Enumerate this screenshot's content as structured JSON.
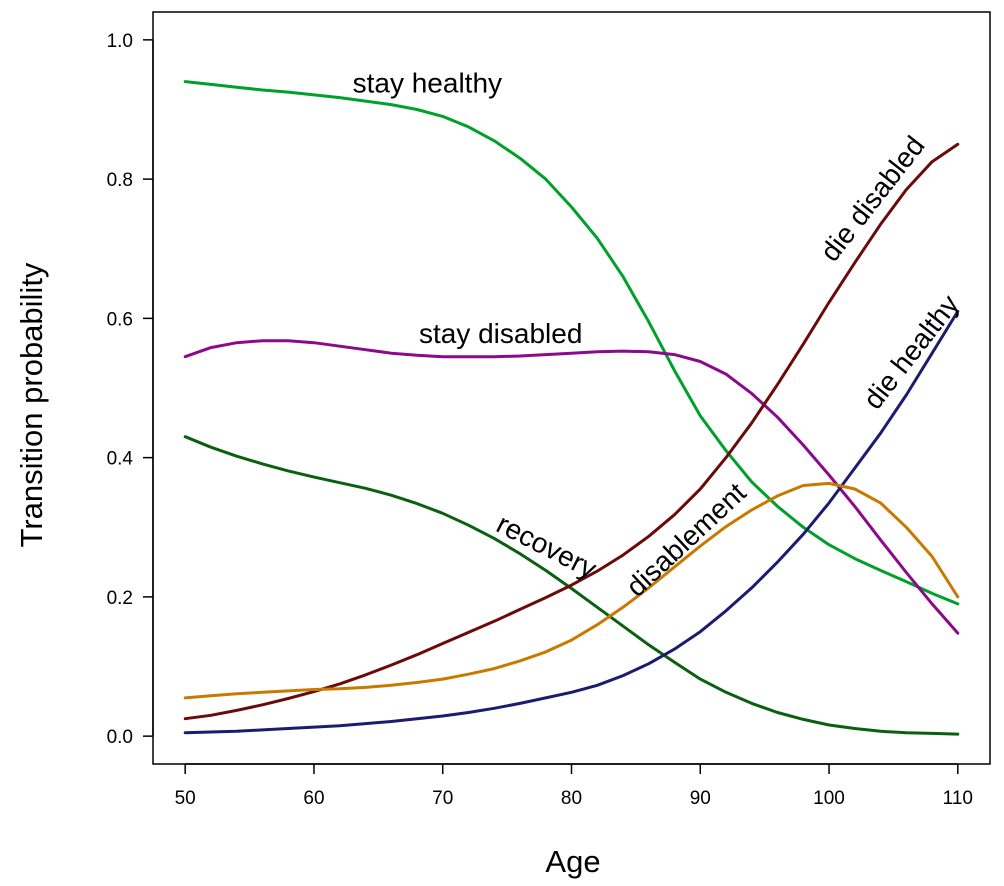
{
  "chart_data": {
    "type": "line",
    "title": "",
    "xlabel": "Age",
    "ylabel": "Transition probability",
    "xlim": [
      47.5,
      112.5
    ],
    "ylim": [
      -0.04,
      1.04
    ],
    "xticks": [
      50,
      60,
      70,
      80,
      90,
      100,
      110
    ],
    "xtick_labels": [
      "50",
      "60",
      "70",
      "80",
      "90",
      "100",
      "110"
    ],
    "yticks": [
      0.0,
      0.2,
      0.4,
      0.6,
      0.8,
      1.0
    ],
    "ytick_labels": [
      "0.0",
      "0.2",
      "0.4",
      "0.6",
      "0.8",
      "1.0"
    ],
    "grid": false,
    "legend": "none (labels placed on curves)",
    "x": [
      50,
      52,
      54,
      56,
      58,
      60,
      62,
      64,
      66,
      68,
      70,
      72,
      74,
      76,
      78,
      80,
      82,
      84,
      86,
      88,
      90,
      92,
      94,
      96,
      98,
      100,
      102,
      104,
      106,
      108,
      110
    ],
    "series": [
      {
        "name": "stay healthy",
        "color": "#00a02a",
        "values": [
          0.94,
          0.936,
          0.932,
          0.928,
          0.925,
          0.921,
          0.917,
          0.912,
          0.907,
          0.9,
          0.89,
          0.875,
          0.855,
          0.83,
          0.8,
          0.76,
          0.715,
          0.66,
          0.595,
          0.525,
          0.46,
          0.41,
          0.365,
          0.33,
          0.3,
          0.275,
          0.255,
          0.238,
          0.222,
          0.205,
          0.19
        ]
      },
      {
        "name": "stay disabled",
        "color": "#8b0a8b",
        "values": [
          0.545,
          0.558,
          0.565,
          0.568,
          0.568,
          0.565,
          0.56,
          0.555,
          0.55,
          0.547,
          0.545,
          0.545,
          0.545,
          0.546,
          0.548,
          0.55,
          0.552,
          0.553,
          0.552,
          0.548,
          0.538,
          0.52,
          0.492,
          0.458,
          0.418,
          0.375,
          0.33,
          0.282,
          0.235,
          0.19,
          0.148
        ]
      },
      {
        "name": "recovery",
        "color": "#0a6010",
        "values": [
          0.43,
          0.415,
          0.402,
          0.391,
          0.381,
          0.372,
          0.364,
          0.356,
          0.346,
          0.334,
          0.32,
          0.303,
          0.284,
          0.262,
          0.238,
          0.212,
          0.185,
          0.158,
          0.131,
          0.106,
          0.082,
          0.063,
          0.047,
          0.034,
          0.024,
          0.016,
          0.011,
          0.007,
          0.005,
          0.004,
          0.003
        ]
      },
      {
        "name": "die disabled",
        "color": "#6a0a0a",
        "values": [
          0.025,
          0.03,
          0.037,
          0.045,
          0.054,
          0.064,
          0.075,
          0.088,
          0.102,
          0.117,
          0.133,
          0.149,
          0.165,
          0.182,
          0.199,
          0.217,
          0.237,
          0.26,
          0.287,
          0.318,
          0.355,
          0.4,
          0.45,
          0.505,
          0.563,
          0.623,
          0.68,
          0.735,
          0.785,
          0.825,
          0.85
        ]
      },
      {
        "name": "die healthy",
        "color": "#1c1c6e",
        "values": [
          0.005,
          0.006,
          0.007,
          0.009,
          0.011,
          0.013,
          0.015,
          0.018,
          0.021,
          0.025,
          0.029,
          0.034,
          0.04,
          0.047,
          0.055,
          0.063,
          0.073,
          0.087,
          0.104,
          0.125,
          0.15,
          0.18,
          0.213,
          0.25,
          0.29,
          0.335,
          0.385,
          0.435,
          0.49,
          0.55,
          0.61
        ]
      },
      {
        "name": "disablement",
        "color": "#c87a00",
        "values": [
          0.055,
          0.058,
          0.061,
          0.063,
          0.065,
          0.067,
          0.068,
          0.07,
          0.073,
          0.077,
          0.082,
          0.089,
          0.097,
          0.108,
          0.121,
          0.138,
          0.16,
          0.185,
          0.213,
          0.243,
          0.273,
          0.301,
          0.325,
          0.345,
          0.36,
          0.363,
          0.355,
          0.335,
          0.3,
          0.258,
          0.2
        ]
      }
    ],
    "annotations": [
      {
        "text": "stay healthy",
        "series": "stay healthy",
        "x": 68.8,
        "y": 0.935,
        "rotate_deg": 0
      },
      {
        "text": "stay disabled",
        "series": "stay disabled",
        "x": 74.5,
        "y": 0.575,
        "rotate_deg": 0
      },
      {
        "text": "recovery",
        "series": "recovery",
        "x": 78.0,
        "y": 0.27,
        "rotate_deg": 27
      },
      {
        "text": "disablement",
        "series": "disablement",
        "x": 89.0,
        "y": 0.28,
        "rotate_deg": -43
      },
      {
        "text": "die disabled",
        "series": "die disabled",
        "x": 103.5,
        "y": 0.77,
        "rotate_deg": -52
      },
      {
        "text": "die healthy",
        "series": "die healthy",
        "x": 106.5,
        "y": 0.55,
        "rotate_deg": -52
      }
    ]
  }
}
